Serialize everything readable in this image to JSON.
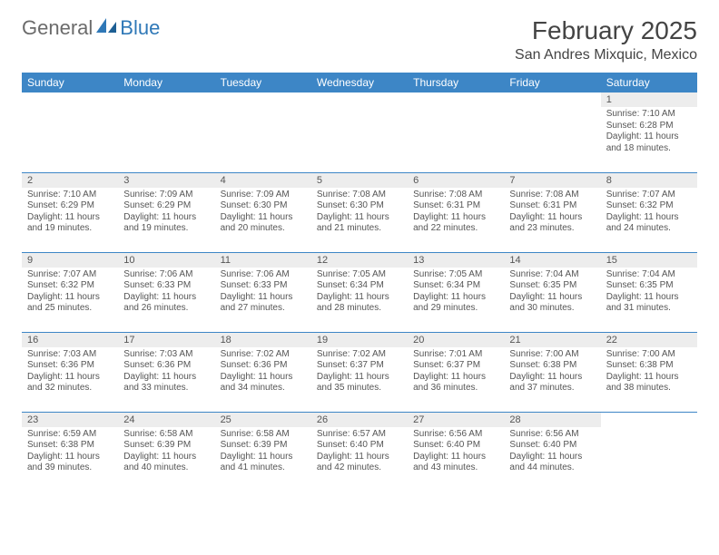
{
  "logo": {
    "part1": "General",
    "part2": "Blue"
  },
  "title": "February 2025",
  "location": "San Andres Mixquic, Mexico",
  "colors": {
    "header_bg": "#3d86c6",
    "header_text": "#ffffff",
    "daynum_bg": "#ededed",
    "border": "#3d86c6",
    "logo_gray": "#6b6b6b",
    "logo_blue": "#2f78b7"
  },
  "weekdays": [
    "Sunday",
    "Monday",
    "Tuesday",
    "Wednesday",
    "Thursday",
    "Friday",
    "Saturday"
  ],
  "weeks": [
    [
      {
        "empty": true
      },
      {
        "empty": true
      },
      {
        "empty": true
      },
      {
        "empty": true
      },
      {
        "empty": true
      },
      {
        "empty": true
      },
      {
        "day": "1",
        "sunrise": "Sunrise: 7:10 AM",
        "sunset": "Sunset: 6:28 PM",
        "daylight": "Daylight: 11 hours and 18 minutes."
      }
    ],
    [
      {
        "day": "2",
        "sunrise": "Sunrise: 7:10 AM",
        "sunset": "Sunset: 6:29 PM",
        "daylight": "Daylight: 11 hours and 19 minutes."
      },
      {
        "day": "3",
        "sunrise": "Sunrise: 7:09 AM",
        "sunset": "Sunset: 6:29 PM",
        "daylight": "Daylight: 11 hours and 19 minutes."
      },
      {
        "day": "4",
        "sunrise": "Sunrise: 7:09 AM",
        "sunset": "Sunset: 6:30 PM",
        "daylight": "Daylight: 11 hours and 20 minutes."
      },
      {
        "day": "5",
        "sunrise": "Sunrise: 7:08 AM",
        "sunset": "Sunset: 6:30 PM",
        "daylight": "Daylight: 11 hours and 21 minutes."
      },
      {
        "day": "6",
        "sunrise": "Sunrise: 7:08 AM",
        "sunset": "Sunset: 6:31 PM",
        "daylight": "Daylight: 11 hours and 22 minutes."
      },
      {
        "day": "7",
        "sunrise": "Sunrise: 7:08 AM",
        "sunset": "Sunset: 6:31 PM",
        "daylight": "Daylight: 11 hours and 23 minutes."
      },
      {
        "day": "8",
        "sunrise": "Sunrise: 7:07 AM",
        "sunset": "Sunset: 6:32 PM",
        "daylight": "Daylight: 11 hours and 24 minutes."
      }
    ],
    [
      {
        "day": "9",
        "sunrise": "Sunrise: 7:07 AM",
        "sunset": "Sunset: 6:32 PM",
        "daylight": "Daylight: 11 hours and 25 minutes."
      },
      {
        "day": "10",
        "sunrise": "Sunrise: 7:06 AM",
        "sunset": "Sunset: 6:33 PM",
        "daylight": "Daylight: 11 hours and 26 minutes."
      },
      {
        "day": "11",
        "sunrise": "Sunrise: 7:06 AM",
        "sunset": "Sunset: 6:33 PM",
        "daylight": "Daylight: 11 hours and 27 minutes."
      },
      {
        "day": "12",
        "sunrise": "Sunrise: 7:05 AM",
        "sunset": "Sunset: 6:34 PM",
        "daylight": "Daylight: 11 hours and 28 minutes."
      },
      {
        "day": "13",
        "sunrise": "Sunrise: 7:05 AM",
        "sunset": "Sunset: 6:34 PM",
        "daylight": "Daylight: 11 hours and 29 minutes."
      },
      {
        "day": "14",
        "sunrise": "Sunrise: 7:04 AM",
        "sunset": "Sunset: 6:35 PM",
        "daylight": "Daylight: 11 hours and 30 minutes."
      },
      {
        "day": "15",
        "sunrise": "Sunrise: 7:04 AM",
        "sunset": "Sunset: 6:35 PM",
        "daylight": "Daylight: 11 hours and 31 minutes."
      }
    ],
    [
      {
        "day": "16",
        "sunrise": "Sunrise: 7:03 AM",
        "sunset": "Sunset: 6:36 PM",
        "daylight": "Daylight: 11 hours and 32 minutes."
      },
      {
        "day": "17",
        "sunrise": "Sunrise: 7:03 AM",
        "sunset": "Sunset: 6:36 PM",
        "daylight": "Daylight: 11 hours and 33 minutes."
      },
      {
        "day": "18",
        "sunrise": "Sunrise: 7:02 AM",
        "sunset": "Sunset: 6:36 PM",
        "daylight": "Daylight: 11 hours and 34 minutes."
      },
      {
        "day": "19",
        "sunrise": "Sunrise: 7:02 AM",
        "sunset": "Sunset: 6:37 PM",
        "daylight": "Daylight: 11 hours and 35 minutes."
      },
      {
        "day": "20",
        "sunrise": "Sunrise: 7:01 AM",
        "sunset": "Sunset: 6:37 PM",
        "daylight": "Daylight: 11 hours and 36 minutes."
      },
      {
        "day": "21",
        "sunrise": "Sunrise: 7:00 AM",
        "sunset": "Sunset: 6:38 PM",
        "daylight": "Daylight: 11 hours and 37 minutes."
      },
      {
        "day": "22",
        "sunrise": "Sunrise: 7:00 AM",
        "sunset": "Sunset: 6:38 PM",
        "daylight": "Daylight: 11 hours and 38 minutes."
      }
    ],
    [
      {
        "day": "23",
        "sunrise": "Sunrise: 6:59 AM",
        "sunset": "Sunset: 6:38 PM",
        "daylight": "Daylight: 11 hours and 39 minutes."
      },
      {
        "day": "24",
        "sunrise": "Sunrise: 6:58 AM",
        "sunset": "Sunset: 6:39 PM",
        "daylight": "Daylight: 11 hours and 40 minutes."
      },
      {
        "day": "25",
        "sunrise": "Sunrise: 6:58 AM",
        "sunset": "Sunset: 6:39 PM",
        "daylight": "Daylight: 11 hours and 41 minutes."
      },
      {
        "day": "26",
        "sunrise": "Sunrise: 6:57 AM",
        "sunset": "Sunset: 6:40 PM",
        "daylight": "Daylight: 11 hours and 42 minutes."
      },
      {
        "day": "27",
        "sunrise": "Sunrise: 6:56 AM",
        "sunset": "Sunset: 6:40 PM",
        "daylight": "Daylight: 11 hours and 43 minutes."
      },
      {
        "day": "28",
        "sunrise": "Sunrise: 6:56 AM",
        "sunset": "Sunset: 6:40 PM",
        "daylight": "Daylight: 11 hours and 44 minutes."
      },
      {
        "empty": true
      }
    ]
  ]
}
